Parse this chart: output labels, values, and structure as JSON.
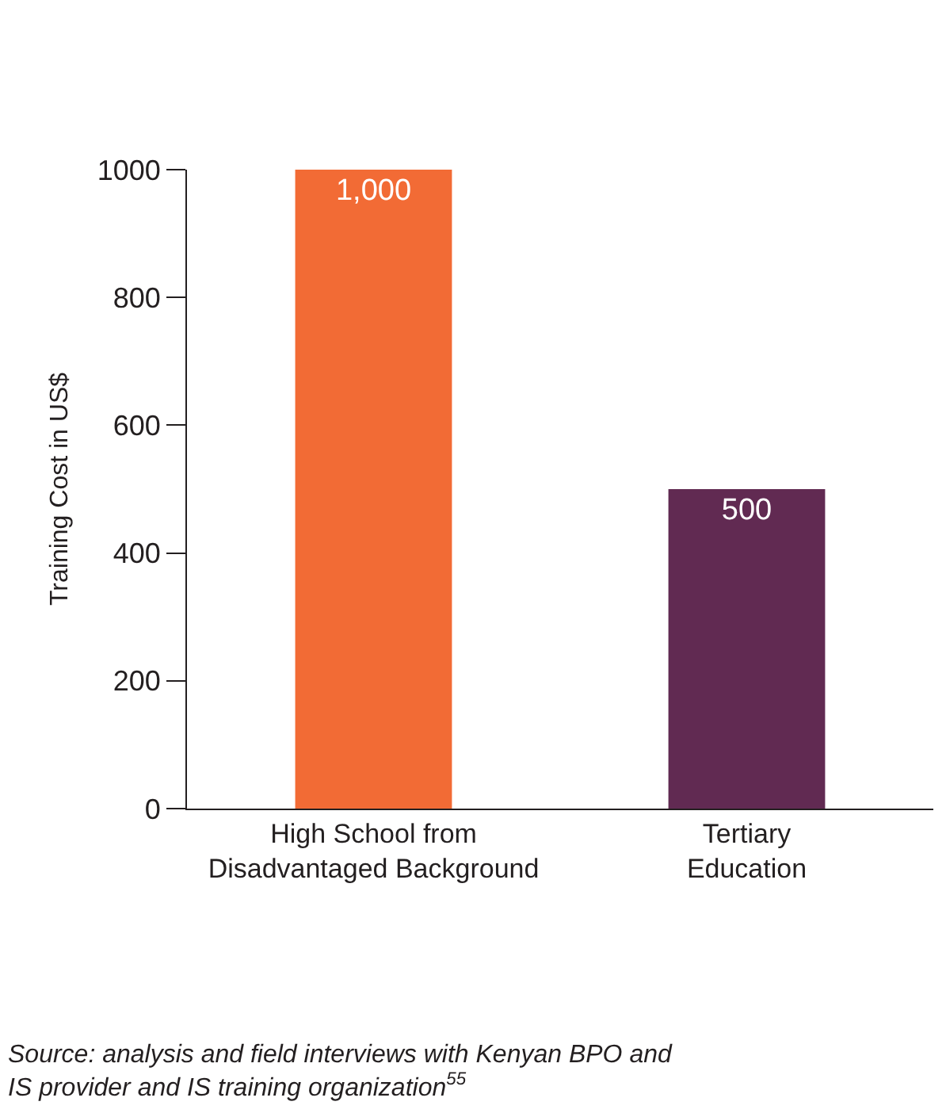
{
  "chart_data": {
    "type": "bar",
    "ylabel": "Training Cost in US$",
    "categories": [
      "High School from Disadvantaged Background",
      "Tertiary Education"
    ],
    "values": [
      1000,
      500
    ],
    "colors": [
      "#f26b35",
      "#612a52"
    ],
    "value_labels": [
      "1,000",
      "500"
    ],
    "ylim": [
      0,
      1000
    ],
    "yticks": [
      0,
      200,
      400,
      600,
      800,
      1000
    ],
    "grid": false,
    "annotations": [
      "Source: analysis and field interviews with Kenyan BPO and IS provider and IS training organization$^{55}$"
    ]
  }
}
